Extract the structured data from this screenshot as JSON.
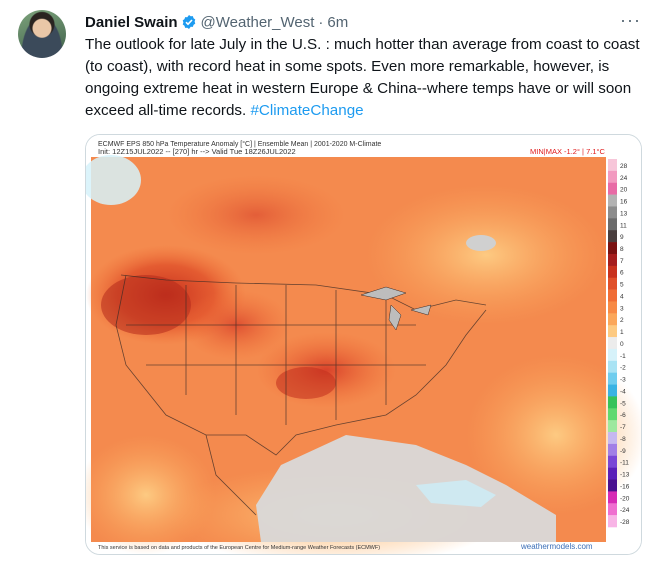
{
  "tweet": {
    "author_name": "Daniel Swain",
    "handle": "@Weather_West",
    "separator": "·",
    "time": "6m",
    "text": "The outlook for late July in the U.S. : much hotter than average from coast to coast (to coast), with record heat in some spots. Even more remarkable, however, is ongoing extreme heat in western Europe & China--where temps have or will soon exceed all-time records. ",
    "hashtag": "#ClimateChange",
    "more_glyph": "···"
  },
  "map": {
    "title_line1": "ECMWF EPS 850 hPa Temperature Anomaly [°C] | Ensemble Mean | 2001-2020 M-Climate",
    "title_line2": "Init: 12Z15JUL2022 -- [270] hr --> Valid Tue 18Z26JUL2022",
    "minmax": "MIN|MAX -1.2° | 7.1°C",
    "footer": "This service is based on data and products of the European Centre for Medium-range Weather Forecasts (ECMWF)",
    "watermark": "weathermodels.com",
    "colorbar": [
      {
        "label": "28",
        "color": "#f7c6d9"
      },
      {
        "label": "24",
        "color": "#f29ac0"
      },
      {
        "label": "20",
        "color": "#e86ba6"
      },
      {
        "label": "16",
        "color": "#b3b3b3"
      },
      {
        "label": "13",
        "color": "#8c8c8c"
      },
      {
        "label": "11",
        "color": "#6b6b6b"
      },
      {
        "label": "9",
        "color": "#4a3e3e"
      },
      {
        "label": "8",
        "color": "#7a1212"
      },
      {
        "label": "7",
        "color": "#a51e1e"
      },
      {
        "label": "6",
        "color": "#c8321e"
      },
      {
        "label": "5",
        "color": "#e0502a"
      },
      {
        "label": "4",
        "color": "#f06d36"
      },
      {
        "label": "3",
        "color": "#f78a46"
      },
      {
        "label": "2",
        "color": "#fba75b"
      },
      {
        "label": "1",
        "color": "#fdca82"
      },
      {
        "label": "0",
        "color": "#ececec"
      },
      {
        "label": "-1",
        "color": "#d6f2fa"
      },
      {
        "label": "-2",
        "color": "#a9e3f4"
      },
      {
        "label": "-3",
        "color": "#6fcdee"
      },
      {
        "label": "-4",
        "color": "#39b3e3"
      },
      {
        "label": "-5",
        "color": "#35c35a"
      },
      {
        "label": "-6",
        "color": "#5fd970"
      },
      {
        "label": "-7",
        "color": "#9ee89f"
      },
      {
        "label": "-8",
        "color": "#c6b8f0"
      },
      {
        "label": "-9",
        "color": "#a27fe6"
      },
      {
        "label": "-11",
        "color": "#7a46d6"
      },
      {
        "label": "-13",
        "color": "#5a1fb8"
      },
      {
        "label": "-16",
        "color": "#4a108f"
      },
      {
        "label": "-20",
        "color": "#d62bb5"
      },
      {
        "label": "-24",
        "color": "#ef6fd0"
      },
      {
        "label": "-28",
        "color": "#f8b4e6"
      }
    ]
  }
}
